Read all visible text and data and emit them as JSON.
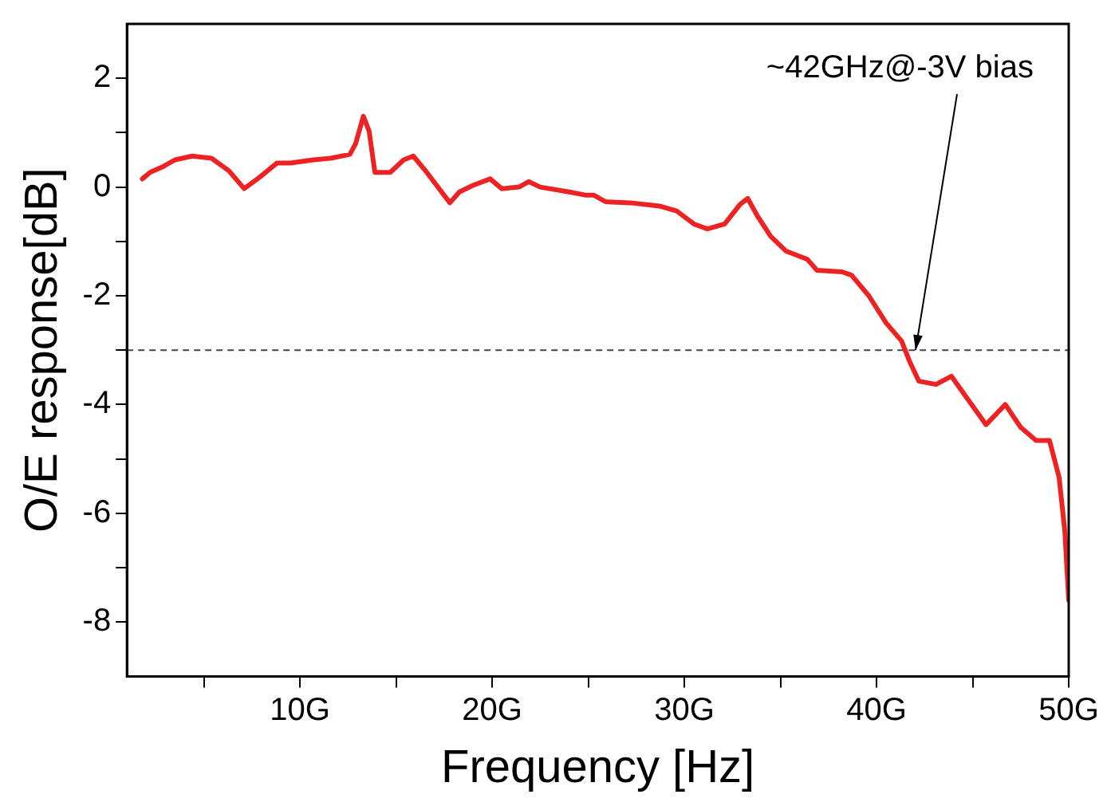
{
  "chart_data": {
    "type": "line",
    "xlabel": "Frequency [Hz]",
    "ylabel": "O/E response[dB]",
    "xlim": [
      1,
      50
    ],
    "ylim": [
      -9,
      3
    ],
    "xticks": [
      {
        "value": 5,
        "label": null
      },
      {
        "value": 10,
        "label": "10G"
      },
      {
        "value": 15,
        "label": null
      },
      {
        "value": 20,
        "label": "20G"
      },
      {
        "value": 25,
        "label": null
      },
      {
        "value": 30,
        "label": "30G"
      },
      {
        "value": 35,
        "label": null
      },
      {
        "value": 40,
        "label": "40G"
      },
      {
        "value": 45,
        "label": null
      },
      {
        "value": 50,
        "label": "50G"
      }
    ],
    "yticks": [
      -8,
      {
        "value": -7,
        "label": null
      },
      -6,
      {
        "value": -5,
        "label": null
      },
      -4,
      {
        "value": -3,
        "label": null
      },
      -2,
      {
        "value": -1,
        "label": null
      },
      0,
      {
        "value": 1,
        "label": null
      },
      2
    ],
    "grid": false,
    "legend": false,
    "marker": "none",
    "line_style": "solid",
    "series": [
      {
        "color": "#ee2222",
        "x": [
          1.8,
          2.2,
          2.9,
          3.5,
          4.4,
          5.4,
          6.3,
          7.1,
          7.9,
          8.8,
          9.5,
          10.7,
          11.6,
          12.6,
          12.9,
          13.3,
          13.6,
          13.9,
          14.7,
          15.4,
          15.9,
          16.6,
          17.8,
          18.3,
          19.0,
          19.9,
          20.5,
          21.4,
          21.9,
          22.5,
          24.0,
          24.9,
          25.3,
          25.9,
          27.2,
          28.7,
          29.6,
          30.5,
          31.2,
          32.1,
          32.9,
          33.3,
          33.8,
          34.5,
          35.3,
          36.4,
          36.9,
          38.2,
          38.7,
          39.6,
          40.5,
          41.3,
          41.7,
          42.2,
          43.1,
          43.9,
          44.6,
          45.7,
          46.7,
          47.5,
          48.3,
          49.0,
          49.5,
          49.8,
          50.0
        ],
        "values": [
          0.15,
          0.27,
          0.38,
          0.5,
          0.57,
          0.53,
          0.3,
          -0.03,
          0.18,
          0.44,
          0.44,
          0.5,
          0.53,
          0.6,
          0.8,
          1.3,
          1.03,
          0.27,
          0.27,
          0.5,
          0.57,
          0.27,
          -0.29,
          -0.09,
          0.03,
          0.15,
          -0.03,
          0,
          0.1,
          0,
          -0.09,
          -0.15,
          -0.15,
          -0.27,
          -0.29,
          -0.35,
          -0.44,
          -0.68,
          -0.77,
          -0.68,
          -0.32,
          -0.21,
          -0.53,
          -0.91,
          -1.18,
          -1.33,
          -1.53,
          -1.56,
          -1.62,
          -2.0,
          -2.5,
          -2.83,
          -3.19,
          -3.57,
          -3.63,
          -3.48,
          -3.83,
          -4.37,
          -4.0,
          -4.42,
          -4.66,
          -4.66,
          -5.34,
          -6.34,
          -7.6
        ]
      }
    ],
    "ref_lines": [
      {
        "axis": "y",
        "value": -3,
        "color": "#444444",
        "line_style": "dashed"
      }
    ],
    "annotations": [
      {
        "text": "~42GHz@-3V bias",
        "x": 42,
        "y": -3
      }
    ]
  }
}
